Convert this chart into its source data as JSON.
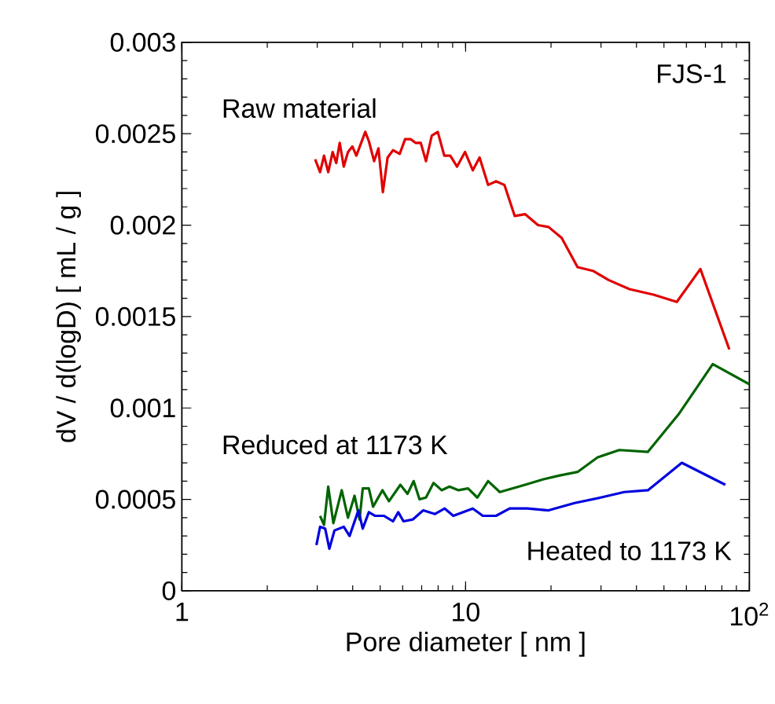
{
  "chart_data": {
    "type": "line",
    "xlabel": "Pore diameter [ nm ]",
    "ylabel": "dV / d(logD) [ mL / g ]",
    "annotations": [
      "FJS-1"
    ],
    "log": "x",
    "xlim": [
      1,
      100
    ],
    "xticks": [
      1,
      10,
      {
        "value": 100,
        "label": "10$^{2}$"
      }
    ],
    "ylim": [
      0,
      0.003
    ],
    "yticks": [
      0,
      0.0005,
      0.001,
      0.0015,
      0.002,
      0.0025,
      0.003
    ],
    "series": [
      {
        "name": "Raw material",
        "color": "#e00000",
        "x": [
          2.95,
          3.07,
          3.17,
          3.28,
          3.4,
          3.5,
          3.6,
          3.72,
          3.85,
          3.99,
          4.12,
          4.43,
          4.56,
          4.76,
          4.93,
          5.11,
          5.31,
          5.55,
          5.86,
          6.12,
          6.41,
          6.66,
          6.95,
          7.25,
          7.6,
          7.98,
          8.41,
          8.83,
          9.33,
          9.95,
          10.6,
          11.2,
          12.0,
          12.8,
          13.7,
          14.9,
          16.2,
          18.0,
          19.6,
          21.8,
          24.8,
          28.1,
          31.9,
          37.8,
          45.9,
          55.5,
          67.2,
          85.0
        ],
        "values": [
          0.00236,
          0.00229,
          0.00238,
          0.00229,
          0.0024,
          0.00234,
          0.00245,
          0.00232,
          0.0024,
          0.00243,
          0.00238,
          0.00251,
          0.00246,
          0.00235,
          0.00242,
          0.00218,
          0.00237,
          0.00241,
          0.00239,
          0.00247,
          0.00247,
          0.00245,
          0.00245,
          0.00235,
          0.00249,
          0.00251,
          0.00238,
          0.00238,
          0.00232,
          0.0024,
          0.0023,
          0.00237,
          0.00222,
          0.00224,
          0.00222,
          0.00205,
          0.00206,
          0.002,
          0.00199,
          0.00193,
          0.00177,
          0.00175,
          0.0017,
          0.00165,
          0.00162,
          0.00158,
          0.00176,
          0.00132
        ]
      },
      {
        "name": "Reduced at 1173 K",
        "color": "#006400",
        "x": [
          3.07,
          3.17,
          3.28,
          3.42,
          3.66,
          3.85,
          4.06,
          4.23,
          4.34,
          4.56,
          4.72,
          5.09,
          5.37,
          5.89,
          6.24,
          6.56,
          6.88,
          7.25,
          7.71,
          8.23,
          8.77,
          9.44,
          10.2,
          11.0,
          12.0,
          13.2,
          16.2,
          18.8,
          21.3,
          24.8,
          29.2,
          34.8,
          43.9,
          56.6,
          74.3,
          100
        ],
        "values": [
          0.00041,
          0.00036,
          0.00057,
          0.00037,
          0.00055,
          0.0004,
          0.00052,
          0.00039,
          0.00056,
          0.00056,
          0.00046,
          0.00055,
          0.00049,
          0.00058,
          0.00053,
          0.0006,
          0.0005,
          0.00051,
          0.00059,
          0.00055,
          0.00057,
          0.00055,
          0.00056,
          0.00051,
          0.0006,
          0.00054,
          0.00058,
          0.00061,
          0.00063,
          0.00065,
          0.00073,
          0.00077,
          0.00076,
          0.00097,
          0.00124,
          0.00113
        ]
      },
      {
        "name": "Heated to 1173 K",
        "color": "#0000e0",
        "x": [
          2.98,
          3.07,
          3.2,
          3.31,
          3.45,
          3.72,
          3.9,
          4.19,
          4.34,
          4.56,
          4.8,
          5.16,
          5.55,
          5.79,
          6.04,
          6.51,
          7.09,
          7.8,
          8.44,
          9.05,
          10.6,
          11.5,
          12.8,
          14.3,
          16.5,
          19.6,
          24.2,
          29.9,
          36.2,
          43.9,
          57.8,
          82.3
        ],
        "values": [
          0.00025,
          0.00035,
          0.00034,
          0.00023,
          0.00033,
          0.00035,
          0.0003,
          0.00044,
          0.00034,
          0.00043,
          0.00041,
          0.00041,
          0.00038,
          0.00043,
          0.00038,
          0.00039,
          0.00044,
          0.00042,
          0.00045,
          0.00041,
          0.00045,
          0.00041,
          0.00041,
          0.00045,
          0.00045,
          0.00044,
          0.00048,
          0.00051,
          0.00054,
          0.00055,
          0.0007,
          0.00058
        ]
      }
    ]
  }
}
